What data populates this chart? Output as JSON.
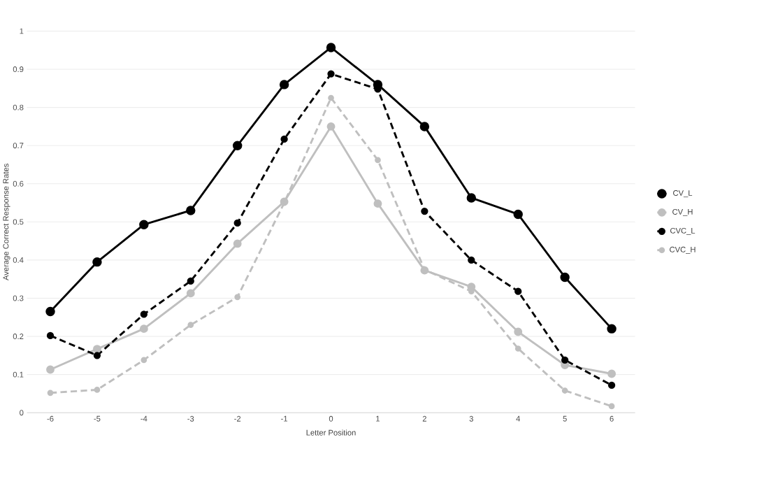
{
  "chart_data": {
    "type": "line",
    "xlabel": "Letter Position",
    "ylabel": "Average Correct Response Rates",
    "categories": [
      "-6",
      "-5",
      "-4",
      "-3",
      "-2",
      "-1",
      "0",
      "1",
      "2",
      "3",
      "4",
      "5",
      "6"
    ],
    "series": [
      {
        "name": "CV_L",
        "color": "#000000",
        "line_style": "solid",
        "values": [
          0.265,
          0.395,
          0.493,
          0.53,
          0.7,
          0.86,
          0.957,
          0.86,
          0.75,
          0.563,
          0.52,
          0.355,
          0.22
        ]
      },
      {
        "name": "CV_H",
        "color": "#bfbfbf",
        "line_style": "solid",
        "values": [
          0.113,
          0.167,
          0.22,
          0.313,
          0.443,
          0.553,
          0.75,
          0.548,
          0.373,
          0.33,
          0.212,
          0.125,
          0.102
        ]
      },
      {
        "name": "CVC_L",
        "color": "#000000",
        "line_style": "dashed",
        "values": [
          0.202,
          0.15,
          0.258,
          0.345,
          0.497,
          0.717,
          0.888,
          0.848,
          0.528,
          0.4,
          0.318,
          0.138,
          0.072
        ]
      },
      {
        "name": "CVC_H",
        "color": "#bfbfbf",
        "line_style": "dashed",
        "values": [
          0.052,
          0.06,
          0.138,
          0.23,
          0.303,
          0.55,
          0.825,
          0.662,
          0.375,
          0.318,
          0.168,
          0.058,
          0.017
        ]
      }
    ],
    "ylim": [
      0,
      1
    ],
    "yticks": [
      0,
      0.1,
      0.2,
      0.3,
      0.4,
      0.5,
      0.6,
      0.7,
      0.8,
      0.9,
      1
    ],
    "grid": "y",
    "legend": "right",
    "marker": "circle"
  }
}
